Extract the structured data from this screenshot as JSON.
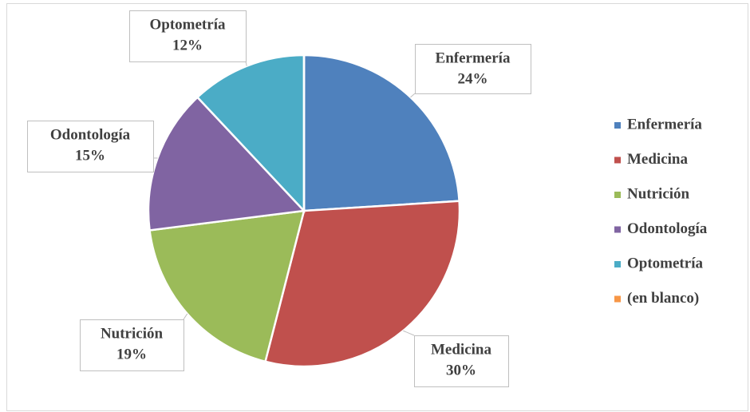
{
  "chart_data": {
    "type": "pie",
    "categories": [
      "Enfermería",
      "Medicina",
      "Nutrición",
      "Odontología",
      "Optometría",
      "(en blanco)"
    ],
    "values": [
      24,
      30,
      19,
      15,
      12,
      0
    ],
    "value_labels": [
      "24%",
      "30%",
      "19%",
      "15%",
      "12%",
      null
    ],
    "colors": [
      "#4f81bd",
      "#c0504d",
      "#9bbb59",
      "#8064a2",
      "#4bacc6",
      "#f79646"
    ],
    "legend": "right"
  }
}
